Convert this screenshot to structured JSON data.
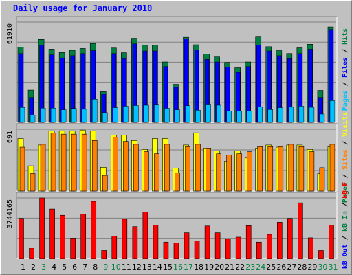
{
  "title": "Daily usage for January 2010",
  "colors": {
    "background": "#c0c0c0",
    "plot": "#c0c0c0",
    "hits": "#008040",
    "files": "#0000ff",
    "pages": "#00c0ff",
    "visits": "#ffff00",
    "sites": "#ff8000",
    "kbin": "#008040",
    "kbout": "#0000ff",
    "kbf": "#ff0000",
    "title_text": "#0000ff",
    "weekday_text": "#000000",
    "weekend_text": "#008040"
  },
  "chart_data": [
    {
      "type": "bar",
      "panel": "top",
      "ymax_label": "61910",
      "ylim": [
        0,
        61910
      ],
      "grid": true,
      "categories": [
        "1",
        "2",
        "3",
        "4",
        "5",
        "6",
        "7",
        "8",
        "9",
        "10",
        "11",
        "12",
        "13",
        "14",
        "15",
        "16",
        "17",
        "18",
        "19",
        "20",
        "21",
        "22",
        "23",
        "24",
        "25",
        "26",
        "27",
        "28",
        "29",
        "30",
        "31"
      ],
      "legend": [
        {
          "text": "Hits",
          "color": "#008040"
        },
        {
          "text": "Files",
          "color": "#0000ff"
        },
        {
          "text": "Pages",
          "color": "#00c0ff"
        }
      ],
      "series": [
        {
          "name": "Hits",
          "values": [
            46500,
            19900,
            51200,
            45200,
            43100,
            44500,
            45600,
            48700,
            18900,
            45900,
            43000,
            51900,
            47600,
            47600,
            37300,
            23500,
            52500,
            47900,
            42200,
            40400,
            37000,
            33700,
            37300,
            52700,
            46700,
            44300,
            42500,
            46000,
            48200,
            19700,
            58900
          ]
        },
        {
          "name": "Files",
          "values": [
            42500,
            15400,
            47700,
            41700,
            39800,
            41200,
            42500,
            44300,
            17400,
            42500,
            39300,
            48500,
            44100,
            44100,
            34500,
            21700,
            51600,
            44600,
            38900,
            37300,
            34000,
            30900,
            34500,
            47700,
            44100,
            41200,
            39300,
            42500,
            45200,
            15400,
            57400
          ]
        },
        {
          "name": "Pages",
          "values": [
            9200,
            4400,
            8800,
            8800,
            7800,
            8600,
            8100,
            14300,
            6000,
            9100,
            10000,
            10400,
            10600,
            10700,
            8700,
            7800,
            10300,
            7500,
            10800,
            10600,
            7000,
            7000,
            7000,
            9600,
            7900,
            9100,
            9400,
            10000,
            9300,
            5100,
            13400
          ]
        }
      ]
    },
    {
      "type": "bar",
      "panel": "middle",
      "ymax_label": "691",
      "ylim": [
        0,
        691
      ],
      "grid": true,
      "categories": [
        "1",
        "2",
        "3",
        "4",
        "5",
        "6",
        "7",
        "8",
        "9",
        "10",
        "11",
        "12",
        "13",
        "14",
        "15",
        "16",
        "17",
        "18",
        "19",
        "20",
        "21",
        "22",
        "23",
        "24",
        "25",
        "26",
        "27",
        "28",
        "29",
        "30",
        "31"
      ],
      "legend": [
        {
          "text": "Visits",
          "color": "#ffff00"
        },
        {
          "text": "Sites",
          "color": "#ff8000"
        },
        {
          "text": "Pages",
          "color": "#008040"
        }
      ],
      "series": [
        {
          "name": "Visits",
          "values": [
            588,
            283,
            515,
            674,
            674,
            674,
            682,
            674,
            266,
            627,
            627,
            566,
            466,
            588,
            588,
            256,
            515,
            651,
            474,
            451,
            335,
            451,
            370,
            474,
            515,
            491,
            515,
            515,
            466,
            196,
            497
          ]
        },
        {
          "name": "Sites",
          "values": [
            491,
            196,
            523,
            649,
            636,
            636,
            636,
            566,
            176,
            603,
            556,
            523,
            441,
            417,
            523,
            202,
            497,
            523,
            474,
            417,
            403,
            417,
            440,
            497,
            497,
            497,
            523,
            497,
            441,
            262,
            523
          ]
        }
      ]
    },
    {
      "type": "bar",
      "panel": "bottom",
      "ymax_label": "3744165",
      "ylim": [
        0,
        3744165
      ],
      "grid": true,
      "categories": [
        "1",
        "2",
        "3",
        "4",
        "5",
        "6",
        "7",
        "8",
        "9",
        "10",
        "11",
        "12",
        "13",
        "14",
        "15",
        "16",
        "17",
        "18",
        "19",
        "20",
        "21",
        "22",
        "23",
        "24",
        "25",
        "26",
        "27",
        "28",
        "29",
        "30",
        "31"
      ],
      "legend": [
        {
          "text": "kB F",
          "color": "#ff0000"
        },
        {
          "text": "kB In",
          "color": "#008040"
        },
        {
          "text": "kB Out",
          "color": "#0000ff"
        }
      ],
      "series": [
        {
          "name": "kB F",
          "values": [
            2480000,
            640000,
            3744165,
            3060000,
            2670000,
            1260000,
            2740000,
            3530000,
            490000,
            1380000,
            2430000,
            1970000,
            2880000,
            2060000,
            1010000,
            960000,
            1590000,
            1080000,
            2010000,
            1590000,
            1200000,
            1320000,
            2030000,
            1010000,
            1490000,
            2240000,
            2480000,
            3440000,
            1280000,
            490000,
            2060000
          ]
        }
      ]
    }
  ],
  "x_axis": {
    "labels": [
      "1",
      "2",
      "3",
      "4",
      "5",
      "6",
      "7",
      "8",
      "9",
      "10",
      "11",
      "12",
      "13",
      "14",
      "15",
      "16",
      "17",
      "18",
      "19",
      "20",
      "21",
      "22",
      "23",
      "24",
      "25",
      "26",
      "27",
      "28",
      "29",
      "30",
      "31"
    ],
    "weekend": [
      false,
      false,
      true,
      false,
      false,
      false,
      false,
      false,
      true,
      true,
      false,
      false,
      false,
      false,
      false,
      true,
      true,
      false,
      false,
      false,
      false,
      false,
      true,
      true,
      false,
      false,
      false,
      false,
      false,
      true,
      true
    ]
  }
}
